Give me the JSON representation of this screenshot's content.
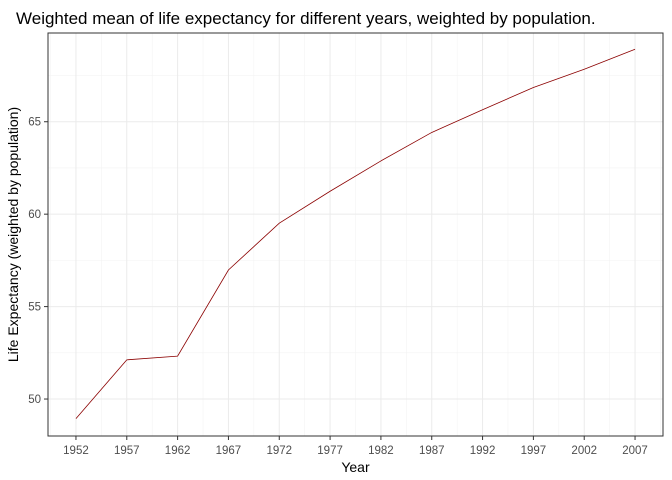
{
  "chart_data": {
    "type": "line",
    "title": "Weighted mean of life expectancy for different years, weighted by population.",
    "xlabel": "Year",
    "ylabel": "Life Expectancy (weighted by population)",
    "x": [
      1952,
      1957,
      1962,
      1967,
      1972,
      1977,
      1982,
      1987,
      1992,
      1997,
      2002,
      2007
    ],
    "x_ticks": [
      "1952",
      "1957",
      "1962",
      "1967",
      "1972",
      "1977",
      "1982",
      "1987",
      "1992",
      "1997",
      "2002",
      "2007"
    ],
    "y_ticks": [
      "50",
      "55",
      "60",
      "65"
    ],
    "xlim": [
      1949.25,
      2009.75
    ],
    "ylim": [
      48.0,
      69.8
    ],
    "grid": true,
    "series": [
      {
        "color": "#8b0000",
        "values": [
          48.94,
          52.12,
          52.32,
          56.98,
          59.51,
          61.24,
          62.88,
          64.42,
          65.65,
          66.85,
          67.84,
          68.92
        ]
      }
    ]
  }
}
